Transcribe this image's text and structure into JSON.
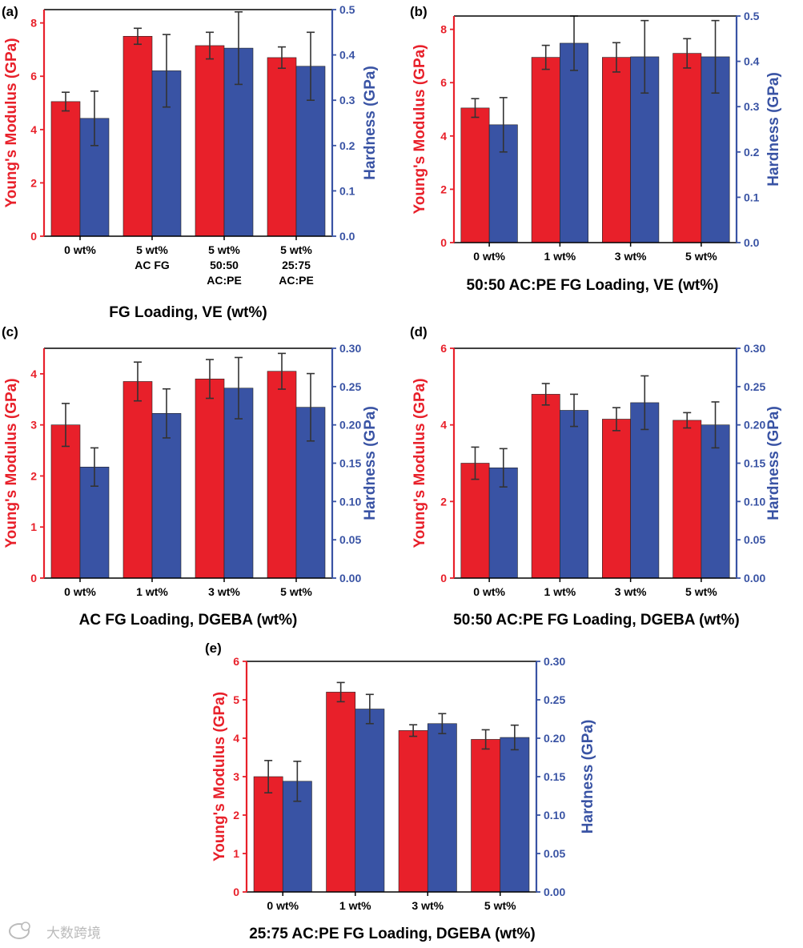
{
  "colors": {
    "modulus": "#e8202a",
    "hardness": "#3953a4",
    "axis": "#000000",
    "error": "#333333"
  },
  "watermark": {
    "icon": "chat-bubble-icon",
    "text": "大数跨境"
  },
  "chart_data": [
    {
      "panel": "(a)",
      "type": "bar",
      "title": "",
      "categories": [
        "0 wt%",
        "5 wt%\nAC FG",
        "5 wt%\n50:50\nAC:PE",
        "5 wt%\n25:75\nAC:PE"
      ],
      "xlabel": "FG Loading, VE (wt%)",
      "ylabel_left": "Young's Modulus (GPa)",
      "ylabel_right": "Hardness (GPa)",
      "ylim_left": [
        0,
        8.5
      ],
      "yticks_left": [
        "0",
        "2",
        "4",
        "6",
        "8"
      ],
      "ylim_right": [
        0,
        0.5
      ],
      "yticks_right": [
        "0.0",
        "0.1",
        "0.2",
        "0.3",
        "0.4",
        "0.5"
      ],
      "series": [
        {
          "name": "Young's Modulus",
          "axis": "left",
          "values": [
            5.05,
            7.5,
            7.15,
            6.7
          ],
          "errors": [
            0.35,
            0.3,
            0.5,
            0.4
          ]
        },
        {
          "name": "Hardness",
          "axis": "right",
          "values": [
            0.26,
            0.365,
            0.415,
            0.375
          ],
          "errors": [
            0.06,
            0.08,
            0.08,
            0.075
          ]
        }
      ]
    },
    {
      "panel": "(b)",
      "type": "bar",
      "title": "",
      "categories": [
        "0 wt%",
        "1 wt%",
        "3 wt%",
        "5 wt%"
      ],
      "xlabel": "50:50 AC:PE FG Loading, VE (wt%)",
      "ylabel_left": "Young's Modulus (GPa)",
      "ylabel_right": "Hardness (GPa)",
      "ylim_left": [
        0,
        8.5
      ],
      "yticks_left": [
        "0",
        "2",
        "4",
        "6",
        "8"
      ],
      "ylim_right": [
        0,
        0.5
      ],
      "yticks_right": [
        "0.0",
        "0.1",
        "0.2",
        "0.3",
        "0.4",
        "0.5"
      ],
      "series": [
        {
          "name": "Young's Modulus",
          "axis": "left",
          "values": [
            5.05,
            6.95,
            6.95,
            7.1
          ],
          "errors": [
            0.35,
            0.45,
            0.55,
            0.55
          ]
        },
        {
          "name": "Hardness",
          "axis": "right",
          "values": [
            0.26,
            0.44,
            0.41,
            0.41
          ],
          "errors": [
            0.06,
            0.06,
            0.08,
            0.08
          ]
        }
      ]
    },
    {
      "panel": "(c)",
      "type": "bar",
      "title": "",
      "categories": [
        "0 wt%",
        "1 wt%",
        "3 wt%",
        "5 wt%"
      ],
      "xlabel": "AC FG Loading, DGEBA (wt%)",
      "ylabel_left": "Young's Modulus (GPa)",
      "ylabel_right": "Hardness (GPa)",
      "ylim_left": [
        0,
        4.5
      ],
      "yticks_left": [
        "0",
        "1",
        "2",
        "3",
        "4"
      ],
      "ylim_right": [
        0,
        0.3
      ],
      "yticks_right": [
        "0.00",
        "0.05",
        "0.10",
        "0.15",
        "0.20",
        "0.25",
        "0.30"
      ],
      "series": [
        {
          "name": "Young's Modulus",
          "axis": "left",
          "values": [
            3.0,
            3.85,
            3.9,
            4.05
          ],
          "errors": [
            0.42,
            0.38,
            0.38,
            0.35
          ]
        },
        {
          "name": "Hardness",
          "axis": "right",
          "values": [
            0.145,
            0.215,
            0.248,
            0.223
          ],
          "errors": [
            0.025,
            0.032,
            0.04,
            0.044
          ]
        }
      ]
    },
    {
      "panel": "(d)",
      "type": "bar",
      "title": "",
      "categories": [
        "0 wt%",
        "1 wt%",
        "3 wt%",
        "5 wt%"
      ],
      "xlabel": "50:50 AC:PE FG Loading, DGEBA (wt%)",
      "ylabel_left": "Young's Modulus (GPa)",
      "ylabel_right": "Hardness (GPa)",
      "ylim_left": [
        0,
        6
      ],
      "yticks_left": [
        "0",
        "2",
        "4",
        "6"
      ],
      "ylim_right": [
        0,
        0.3
      ],
      "yticks_right": [
        "0.00",
        "0.05",
        "0.10",
        "0.15",
        "0.20",
        "0.25",
        "0.30"
      ],
      "series": [
        {
          "name": "Young's Modulus",
          "axis": "left",
          "values": [
            3.0,
            4.8,
            4.15,
            4.12
          ],
          "errors": [
            0.42,
            0.28,
            0.3,
            0.2
          ]
        },
        {
          "name": "Hardness",
          "axis": "right",
          "values": [
            0.144,
            0.219,
            0.229,
            0.2
          ],
          "errors": [
            0.025,
            0.021,
            0.035,
            0.03
          ]
        }
      ]
    },
    {
      "panel": "(e)",
      "type": "bar",
      "title": "",
      "categories": [
        "0 wt%",
        "1 wt%",
        "3 wt%",
        "5 wt%"
      ],
      "xlabel": "25:75 AC:PE FG Loading, DGEBA (wt%)",
      "ylabel_left": "Young's Modulus (GPa)",
      "ylabel_right": "Hardness (GPa)",
      "ylim_left": [
        0,
        6
      ],
      "yticks_left": [
        "0",
        "1",
        "2",
        "3",
        "4",
        "5",
        "6"
      ],
      "ylim_right": [
        0,
        0.3
      ],
      "yticks_right": [
        "0.00",
        "0.05",
        "0.10",
        "0.15",
        "0.20",
        "0.25",
        "0.30"
      ],
      "series": [
        {
          "name": "Young's Modulus",
          "axis": "left",
          "values": [
            3.0,
            5.2,
            4.2,
            3.97
          ],
          "errors": [
            0.42,
            0.25,
            0.15,
            0.25
          ]
        },
        {
          "name": "Hardness",
          "axis": "right",
          "values": [
            0.144,
            0.238,
            0.219,
            0.201
          ],
          "errors": [
            0.026,
            0.019,
            0.013,
            0.016
          ]
        }
      ]
    }
  ]
}
